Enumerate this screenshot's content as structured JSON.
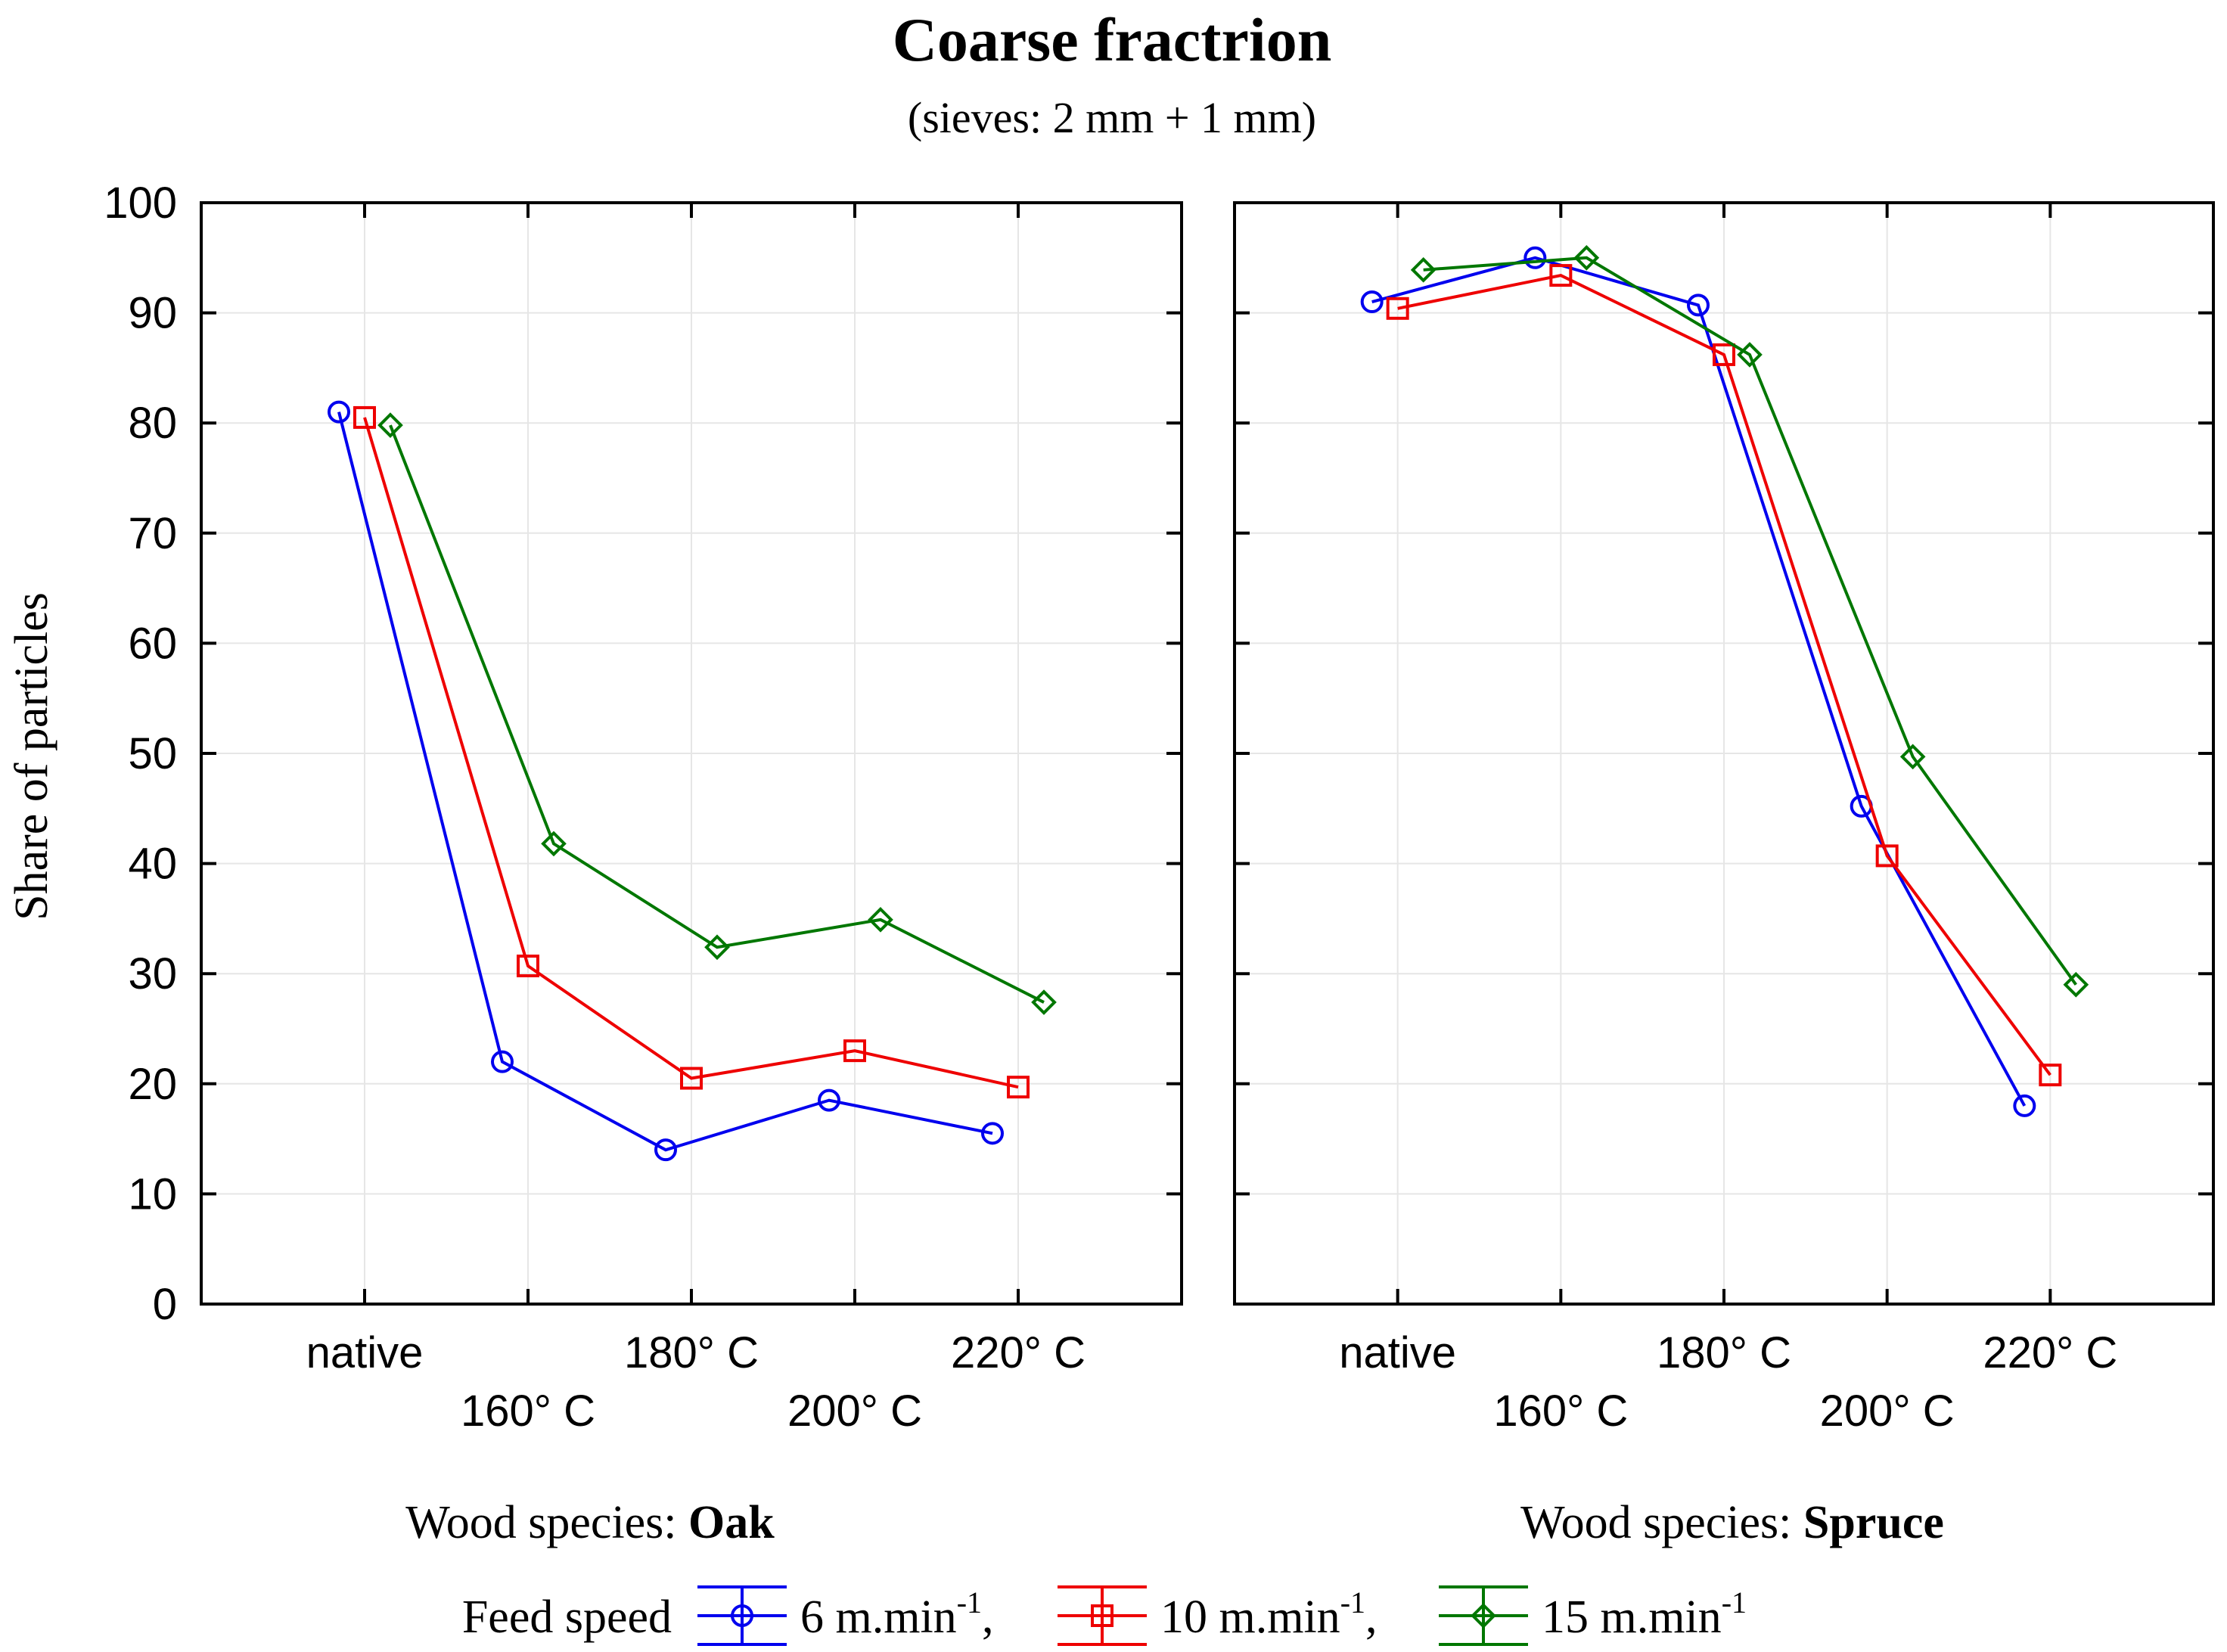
{
  "chart_data": {
    "type": "line",
    "title": "Coarse fractrion",
    "subtitle": "(sieves: 2 mm + 1 mm)",
    "ylabel": "Share of particles",
    "ylim": [
      0,
      100
    ],
    "yticks": [
      "0",
      "10",
      "20",
      "30",
      "40",
      "50",
      "60",
      "70",
      "80",
      "90",
      "100"
    ],
    "categories": [
      "native",
      "160° C",
      "180° C",
      "200° C",
      "220° C"
    ],
    "legend": {
      "label": "Feed speed",
      "entries": [
        {
          "base": "6 m.min",
          "sup": "-1",
          "suffix": ","
        },
        {
          "base": "10 m.min",
          "sup": "-1",
          "suffix": ","
        },
        {
          "base": "15 m.min",
          "sup": "-1",
          "suffix": ""
        }
      ]
    },
    "colors": {
      "6": "#0000ee",
      "10": "#ee0000",
      "15": "#007700"
    },
    "panels": [
      {
        "species_prefix": "Wood species: ",
        "species": "Oak",
        "series": [
          {
            "name": "6 m.min-1",
            "marker": "circle",
            "values": [
              81,
              22,
              14,
              18.5,
              15.5
            ]
          },
          {
            "name": "10 m.min-1",
            "marker": "square",
            "values": [
              80.5,
              30.7,
              20.5,
              23,
              19.7
            ]
          },
          {
            "name": "15 m.min-1",
            "marker": "diamond",
            "values": [
              79.8,
              41.8,
              32.4,
              34.9,
              27.4
            ]
          }
        ]
      },
      {
        "species_prefix": "Wood species: ",
        "species": "Spruce",
        "series": [
          {
            "name": "6 m.min-1",
            "marker": "circle",
            "values": [
              91,
              95,
              90.7,
              45.2,
              18
            ]
          },
          {
            "name": "10 m.min-1",
            "marker": "square",
            "values": [
              90.4,
              93.4,
              86.2,
              40.7,
              20.8
            ]
          },
          {
            "name": "15 m.min-1",
            "marker": "diamond",
            "values": [
              93.9,
              95,
              86.2,
              49.7,
              29
            ]
          }
        ]
      }
    ]
  }
}
